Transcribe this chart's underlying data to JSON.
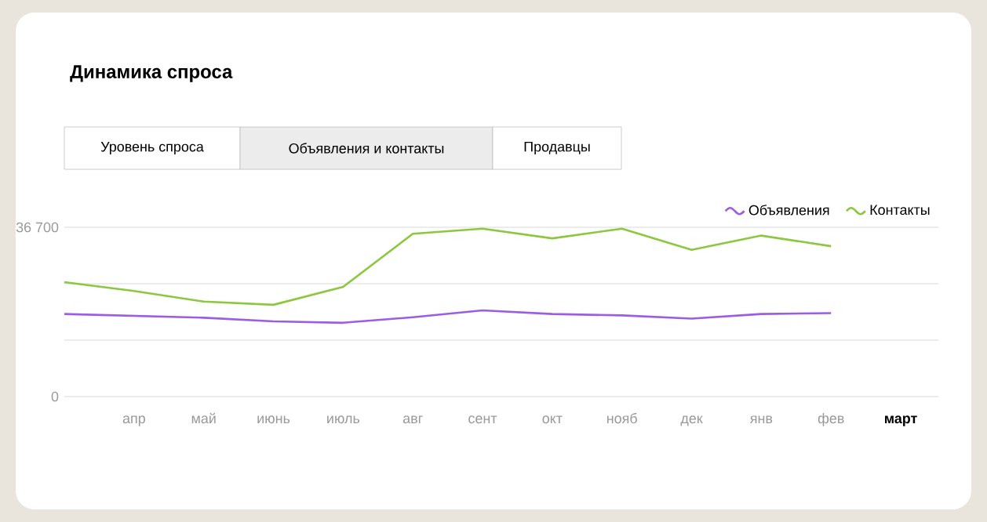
{
  "chart_data": {
    "type": "line",
    "title": "Динамика спроса",
    "annotations": [
      "Уровень спроса",
      "Объявления и контакты",
      "Продавцы"
    ],
    "categories": [
      null,
      "апр",
      "май",
      "июнь",
      "июль",
      "авг",
      "сент",
      "окт",
      "нояб",
      "дек",
      "янв",
      "фев",
      "март"
    ],
    "series": [
      {
        "name": "Объявления",
        "color": "#9b5de5",
        "values": [
          17900,
          17500,
          17100,
          16300,
          16000,
          17200,
          18700,
          17900,
          17600,
          16900,
          17900,
          18100,
          null
        ]
      },
      {
        "name": "Контакты",
        "color": "#8dc63f",
        "values": [
          24800,
          22900,
          20600,
          19900,
          23800,
          35300,
          36400,
          34300,
          36400,
          31800,
          34900,
          32600,
          null
        ]
      }
    ],
    "ylim": [
      0,
      36700
    ],
    "yticks": [
      {
        "value": 0,
        "label": "0"
      },
      {
        "value": 12233,
        "label": null
      },
      {
        "value": 24467,
        "label": null
      },
      {
        "value": 36700,
        "label": "36 700"
      }
    ],
    "grid": "y",
    "legend": "top right",
    "marker": "none",
    "line_style": "solid"
  }
}
